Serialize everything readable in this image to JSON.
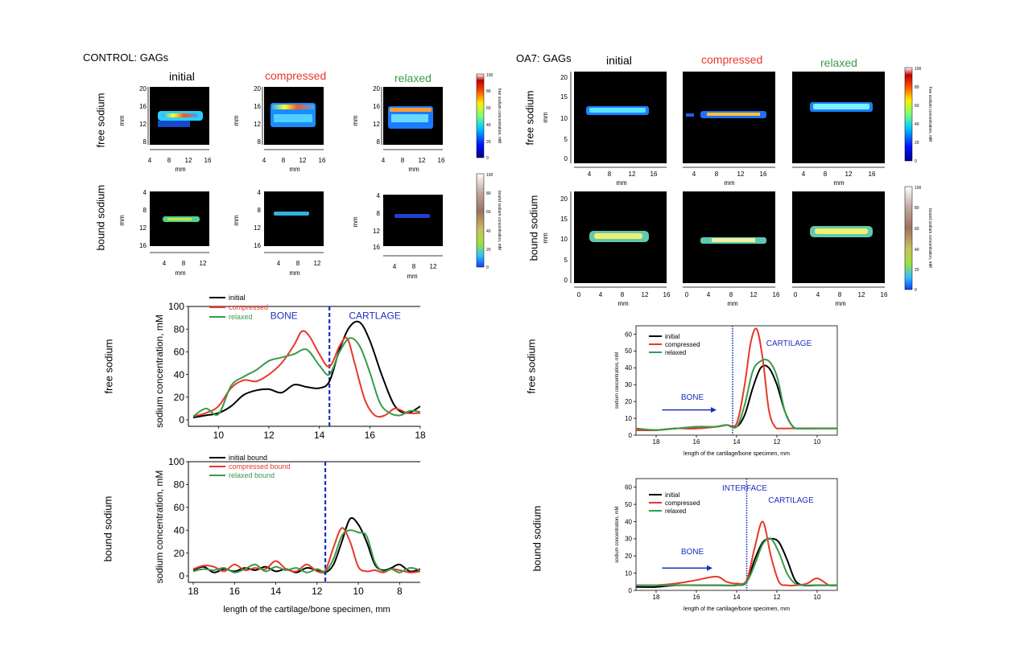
{
  "colors": {
    "initial": "#000000",
    "compressed": "#e8382a",
    "relaxed": "#3a9a4a",
    "annot": "#1a2fbf",
    "panel_bg": "#000000"
  },
  "control": {
    "title": "CONTROL:  GAGs",
    "col_initial": "initial",
    "col_compressed": "compressed",
    "col_relaxed": "relaxed",
    "row_free": "free sodium",
    "row_bound": "bound sodium",
    "axis_mm": "mm",
    "free_yticks": [
      "20",
      "16",
      "12",
      "8"
    ],
    "free_xticks": [
      "4",
      "8",
      "12",
      "16"
    ],
    "bound_yticks": [
      "4",
      "8",
      "12",
      "16"
    ],
    "bound_xticks": [
      "4",
      "8",
      "12"
    ],
    "cbar_free_label": "free sodium concentration,  mM",
    "cbar_bound_label": "bound sodium concentration,  mM",
    "cbar_ticks": [
      "100",
      "80",
      "60",
      "40",
      "20",
      "0"
    ]
  },
  "oa7": {
    "title": "OA7: GAGs",
    "col_initial": "initial",
    "col_compressed": "compressed",
    "col_relaxed": "relaxed",
    "row_free": "free sodium",
    "row_bound": "bound sodium",
    "axis_mm": "mm",
    "yticks": [
      "20",
      "15",
      "10",
      "5",
      "0"
    ],
    "free_xticks": [
      "4",
      "8",
      "12",
      "16"
    ],
    "bound_xticks": [
      "0",
      "4",
      "8",
      "12",
      "16"
    ],
    "cbar_free_label": "free sodium concentration,  mM",
    "cbar_bound_label": "bound sodium concentration,  mM",
    "cbar_ticks": [
      "100",
      "80",
      "60",
      "40",
      "20",
      "0"
    ]
  },
  "chart_data": [
    {
      "id": "control-free",
      "type": "line",
      "row_label": "free sodium",
      "ylabel": "sodium concentration,  mM",
      "xlabel": "",
      "xlim": [
        9,
        18
      ],
      "ylim": [
        0,
        100
      ],
      "xticks": [
        10,
        12,
        14,
        16,
        18
      ],
      "yticks": [
        0,
        20,
        40,
        60,
        80,
        100
      ],
      "divider_x": 14.4,
      "annotations": [
        {
          "text": "BONE",
          "x": 12.6,
          "y": 89
        },
        {
          "text": "CARTLAGE",
          "x": 16.2,
          "y": 89
        }
      ],
      "series": [
        {
          "name": "initial",
          "color": "#000000",
          "x": [
            9,
            9.5,
            10,
            10.5,
            11,
            11.5,
            12,
            12.5,
            13,
            13.5,
            14,
            14.4,
            14.8,
            15.2,
            15.6,
            16,
            16.5,
            17,
            17.5,
            18
          ],
          "y": [
            2,
            4,
            6,
            12,
            22,
            26,
            27,
            24,
            31,
            29,
            28,
            34,
            62,
            82,
            86,
            70,
            38,
            12,
            6,
            12
          ]
        },
        {
          "name": "compressed",
          "color": "#e8382a",
          "x": [
            9,
            9.5,
            10,
            10.5,
            11,
            11.5,
            12,
            12.5,
            13,
            13.3,
            13.6,
            14,
            14.4,
            14.8,
            15.1,
            15.4,
            15.8,
            16.2,
            16.6,
            17,
            17.5,
            18
          ],
          "y": [
            3,
            6,
            12,
            28,
            35,
            34,
            40,
            50,
            66,
            78,
            74,
            58,
            47,
            65,
            72,
            50,
            18,
            4,
            4,
            10,
            6,
            6
          ]
        },
        {
          "name": "relaxed",
          "color": "#3a9a4a",
          "x": [
            9,
            9.5,
            10,
            10.5,
            11,
            11.5,
            12,
            12.5,
            13,
            13.5,
            14,
            14.4,
            14.8,
            15.2,
            15.6,
            16,
            16.4,
            16.8,
            17.2,
            17.6,
            18
          ],
          "y": [
            3,
            10,
            5,
            30,
            38,
            44,
            52,
            55,
            58,
            62,
            48,
            40,
            60,
            72,
            65,
            42,
            15,
            6,
            4,
            8,
            7
          ]
        }
      ]
    },
    {
      "id": "control-bound",
      "type": "line",
      "row_label": "bound sodium",
      "ylabel": "sodium concentration,  mM",
      "xlabel": "length of the cartilage/bone specimen,  mm",
      "xlim": [
        18,
        7
      ],
      "ylim": [
        0,
        100
      ],
      "xticks": [
        18,
        16,
        14,
        12,
        10,
        8
      ],
      "yticks": [
        0,
        20,
        40,
        60,
        80,
        100
      ],
      "divider_x": 11.6,
      "annotations": [],
      "series": [
        {
          "name": "initial bound",
          "color": "#000000",
          "x": [
            18,
            17.5,
            17,
            16.5,
            16,
            15.5,
            15,
            14.5,
            14,
            13.5,
            13,
            12.5,
            12,
            11.6,
            11.2,
            10.8,
            10.4,
            10,
            9.6,
            9.2,
            8.8,
            8.4,
            8,
            7.5,
            7
          ],
          "y": [
            5,
            8,
            3,
            6,
            4,
            7,
            5,
            8,
            4,
            6,
            3,
            7,
            5,
            3,
            10,
            30,
            50,
            45,
            30,
            10,
            5,
            7,
            10,
            4,
            6
          ]
        },
        {
          "name": "compressed bound",
          "color": "#e8382a",
          "x": [
            18,
            17.5,
            17,
            16.5,
            16,
            15.5,
            15,
            14.5,
            14,
            13.5,
            13,
            12.5,
            12,
            11.6,
            11.2,
            10.8,
            10.4,
            10,
            9.6,
            9.2,
            8.8,
            8.4,
            8,
            7.5,
            7
          ],
          "y": [
            6,
            9,
            8,
            4,
            10,
            5,
            7,
            6,
            13,
            6,
            4,
            10,
            4,
            5,
            25,
            42,
            30,
            8,
            4,
            5,
            3,
            6,
            5,
            3,
            4
          ]
        },
        {
          "name": "relaxed bound",
          "color": "#3a9a4a",
          "x": [
            18,
            17.5,
            17,
            16.5,
            16,
            15.5,
            15,
            14.5,
            14,
            13.5,
            13,
            12.5,
            12,
            11.6,
            11.2,
            10.8,
            10.4,
            10,
            9.6,
            9.2,
            8.8,
            8.4,
            8,
            7.5,
            7
          ],
          "y": [
            4,
            6,
            5,
            7,
            3,
            6,
            10,
            4,
            8,
            5,
            7,
            3,
            6,
            4,
            15,
            35,
            40,
            38,
            35,
            12,
            4,
            6,
            3,
            7,
            5
          ]
        }
      ]
    },
    {
      "id": "oa7-free",
      "type": "line",
      "row_label": "free sodium",
      "ylabel": "sodium concentration,  mM",
      "xlabel": "length of the cartilage/bone specimen,  mm",
      "xlim": [
        19,
        9
      ],
      "ylim": [
        0,
        65
      ],
      "xticks": [
        18,
        16,
        14,
        12,
        10
      ],
      "yticks": [
        0,
        10,
        20,
        30,
        40,
        50,
        60
      ],
      "divider_x": 14.2,
      "divider_style": "dotted",
      "annotations": [
        {
          "text": "CARTILAGE",
          "x": 11.4,
          "y": 53
        },
        {
          "text": "BONE",
          "x": 16.2,
          "y": 21
        }
      ],
      "arrow": {
        "from": [
          17.7,
          15
        ],
        "to": [
          15,
          15
        ]
      },
      "series": [
        {
          "name": "initial",
          "color": "#000000",
          "x": [
            19,
            18,
            17,
            16,
            15,
            14.5,
            14,
            13.6,
            13.2,
            12.8,
            12.4,
            12,
            11.6,
            11.2,
            10.8,
            10,
            9
          ],
          "y": [
            3,
            3,
            4,
            4,
            5,
            6,
            5,
            12,
            28,
            40,
            40,
            30,
            14,
            5,
            4,
            4,
            4
          ]
        },
        {
          "name": "compressed",
          "color": "#e8382a",
          "x": [
            19,
            18,
            17,
            16,
            15,
            14.5,
            14,
            13.6,
            13.3,
            13,
            12.7,
            12.4,
            12.1,
            11.8,
            11.4,
            10,
            9
          ],
          "y": [
            3,
            3,
            4,
            4,
            5,
            6,
            7,
            30,
            55,
            63,
            45,
            15,
            5,
            4,
            4,
            4,
            4
          ]
        },
        {
          "name": "relaxed",
          "color": "#3a9a4a",
          "x": [
            19,
            18,
            17,
            16,
            15,
            14.5,
            14,
            13.6,
            13.2,
            12.8,
            12.4,
            12,
            11.6,
            11.2,
            10.8,
            10,
            9
          ],
          "y": [
            4,
            3,
            4,
            5,
            5,
            6,
            5,
            18,
            38,
            44,
            44,
            35,
            14,
            5,
            4,
            4,
            4
          ]
        }
      ]
    },
    {
      "id": "oa7-bound",
      "type": "line",
      "row_label": "bound sodium",
      "ylabel": "sodium concentration,  mM",
      "xlabel": "length of the cartilage/bone specimen,  mm",
      "xlim": [
        19,
        9
      ],
      "ylim": [
        0,
        65
      ],
      "xticks": [
        18,
        16,
        14,
        12,
        10
      ],
      "yticks": [
        0,
        10,
        20,
        30,
        40,
        50,
        60
      ],
      "divider_x": 13.5,
      "divider_style": "dotted",
      "annotations": [
        {
          "text": "INTERFACE",
          "x": 13.6,
          "y": 58
        },
        {
          "text": "CARTILAGE",
          "x": 11.3,
          "y": 51
        },
        {
          "text": "BONE",
          "x": 16.2,
          "y": 21
        }
      ],
      "arrow": {
        "from": [
          17.7,
          13
        ],
        "to": [
          15.2,
          13
        ]
      },
      "series": [
        {
          "name": "initial",
          "color": "#000000",
          "x": [
            19,
            18,
            17,
            16,
            15,
            14,
            13.5,
            13.1,
            12.7,
            12.3,
            11.9,
            11.5,
            11.1,
            10.7,
            10,
            9
          ],
          "y": [
            2,
            2,
            3,
            3,
            3,
            3,
            5,
            18,
            28,
            30,
            28,
            18,
            6,
            3,
            3,
            3
          ]
        },
        {
          "name": "compressed",
          "color": "#e8382a",
          "x": [
            19,
            18,
            17,
            16,
            15,
            14.5,
            14,
            13.5,
            13.1,
            12.7,
            12.3,
            11.9,
            11.5,
            11,
            10.5,
            10,
            9.4,
            9
          ],
          "y": [
            3,
            3,
            4,
            6,
            8,
            5,
            4,
            6,
            25,
            40,
            20,
            5,
            3,
            3,
            4,
            7,
            3,
            3
          ]
        },
        {
          "name": "relaxed",
          "color": "#3a9a4a",
          "x": [
            19,
            18,
            17,
            16,
            15,
            14,
            13.5,
            13.1,
            12.7,
            12.3,
            11.9,
            11.5,
            11.1,
            10.7,
            10,
            9
          ],
          "y": [
            3,
            3,
            3,
            3,
            3,
            3,
            5,
            15,
            27,
            30,
            22,
            10,
            4,
            3,
            3,
            3
          ]
        }
      ]
    }
  ]
}
